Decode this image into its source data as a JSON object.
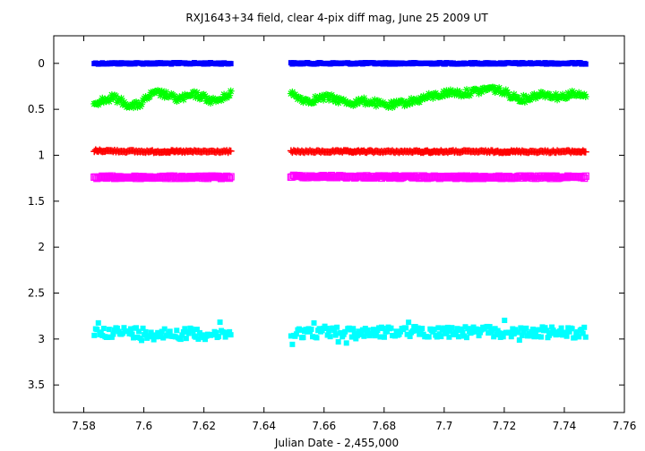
{
  "chart_data": {
    "type": "scatter",
    "title": "RXJ1643+34 field, clear 4-pix diff mag, June 25  2009 UT",
    "xlabel": "Julian Date - 2,455,000",
    "ylabel": "",
    "xlim": [
      7.57,
      7.76
    ],
    "ylim": [
      3.8,
      -0.3
    ],
    "y_inverted": true,
    "grid": false,
    "legend": "none",
    "x_ticks": [
      "7.58",
      "7.6",
      "7.62",
      "7.64",
      "7.66",
      "7.68",
      "7.7",
      "7.72",
      "7.74",
      "7.76"
    ],
    "y_ticks": [
      "0",
      "0.5",
      "1",
      "1.5",
      "2",
      "2.5",
      "3",
      "3.5"
    ],
    "segments": [
      [
        7.5835,
        7.629
      ],
      [
        7.649,
        7.7475
      ]
    ],
    "series": [
      {
        "color": "#0000ff",
        "marker": "filled-square",
        "scatter": 0.008,
        "x": [
          7.584,
          7.59,
          7.6,
          7.61,
          7.62,
          7.629,
          7.65,
          7.67,
          7.69,
          7.71,
          7.73,
          7.747
        ],
        "y": [
          0.0,
          0.0,
          0.0,
          0.0,
          0.0,
          0.0,
          0.0,
          0.0,
          0.0,
          0.0,
          0.0,
          0.0
        ]
      },
      {
        "color": "#00ff00",
        "marker": "star",
        "scatter": 0.035,
        "x": [
          7.584,
          7.587,
          7.59,
          7.593,
          7.596,
          7.599,
          7.602,
          7.605,
          7.608,
          7.611,
          7.614,
          7.617,
          7.62,
          7.623,
          7.626,
          7.629,
          7.649,
          7.652,
          7.655,
          7.658,
          7.661,
          7.664,
          7.667,
          7.67,
          7.673,
          7.676,
          7.679,
          7.682,
          7.685,
          7.688,
          7.691,
          7.694,
          7.697,
          7.7,
          7.703,
          7.706,
          7.709,
          7.712,
          7.715,
          7.718,
          7.721,
          7.724,
          7.727,
          7.73,
          7.733,
          7.736,
          7.739,
          7.742,
          7.745,
          7.747
        ],
        "y": [
          0.42,
          0.4,
          0.37,
          0.42,
          0.47,
          0.44,
          0.35,
          0.32,
          0.35,
          0.39,
          0.37,
          0.34,
          0.37,
          0.41,
          0.39,
          0.31,
          0.33,
          0.38,
          0.41,
          0.38,
          0.37,
          0.39,
          0.42,
          0.43,
          0.41,
          0.42,
          0.45,
          0.46,
          0.44,
          0.42,
          0.4,
          0.37,
          0.35,
          0.33,
          0.31,
          0.33,
          0.31,
          0.3,
          0.27,
          0.29,
          0.33,
          0.37,
          0.39,
          0.35,
          0.33,
          0.35,
          0.37,
          0.33,
          0.35,
          0.36
        ]
      },
      {
        "color": "#ff0000",
        "marker": "plus",
        "scatter": 0.01,
        "x": [
          7.584,
          7.6,
          7.629,
          7.65,
          7.7,
          7.747
        ],
        "y": [
          0.95,
          0.96,
          0.96,
          0.96,
          0.96,
          0.96
        ]
      },
      {
        "color": "#ff00ff",
        "marker": "open-square",
        "scatter": 0.014,
        "x": [
          7.584,
          7.6,
          7.629,
          7.65,
          7.7,
          7.747
        ],
        "y": [
          1.24,
          1.24,
          1.24,
          1.23,
          1.24,
          1.24
        ]
      },
      {
        "color": "#00ffff",
        "marker": "filled-square",
        "scatter": 0.06,
        "x": [
          7.584,
          7.6,
          7.629,
          7.65,
          7.7,
          7.747
        ],
        "y": [
          2.92,
          2.93,
          2.95,
          2.93,
          2.92,
          2.93
        ]
      }
    ]
  }
}
